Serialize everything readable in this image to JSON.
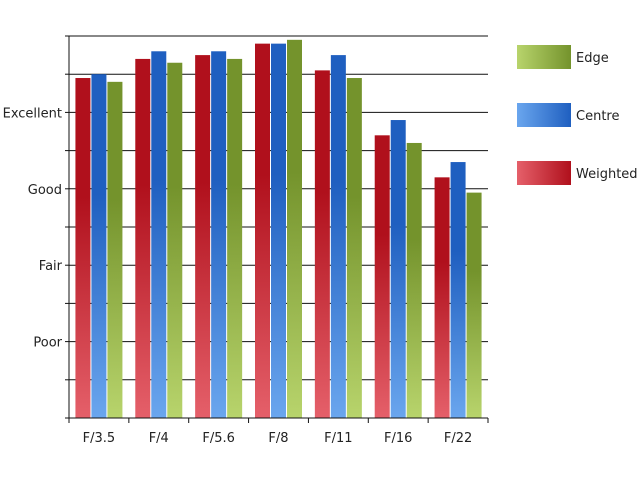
{
  "chart_data": {
    "type": "bar",
    "title": "",
    "xlabel": "",
    "ylabel": "",
    "categories": [
      "F/3.5",
      "F/4",
      "F/5.6",
      "F/8",
      "F/11",
      "F/16",
      "F/22"
    ],
    "y_tick_labels": [
      {
        "label": "Poor",
        "value": 2
      },
      {
        "label": "Fair",
        "value": 4
      },
      {
        "label": "Good",
        "value": 6
      },
      {
        "label": "Excellent",
        "value": 8
      }
    ],
    "ylim": [
      0,
      10
    ],
    "grid": true,
    "legend_position": "right",
    "series": [
      {
        "name": "Weighted",
        "values": [
          8.9,
          9.4,
          9.5,
          9.8,
          9.1,
          7.4,
          6.3
        ],
        "color_dark": "#b0101c",
        "color_light": "#e5606a"
      },
      {
        "name": "Centre",
        "values": [
          9.0,
          9.6,
          9.6,
          9.8,
          9.5,
          7.8,
          6.7
        ],
        "color_dark": "#1f5fc0",
        "color_light": "#6aa6ee"
      },
      {
        "name": "Edge",
        "values": [
          8.8,
          9.3,
          9.4,
          9.9,
          8.9,
          7.2,
          5.9
        ],
        "color_dark": "#74932c",
        "color_light": "#b8d46c"
      }
    ],
    "legend_order": [
      "Edge",
      "Centre",
      "Weighted"
    ]
  }
}
